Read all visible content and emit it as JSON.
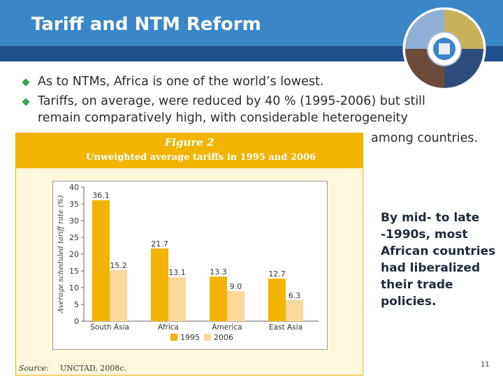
{
  "slide": {
    "title": "Tariff and NTM Reform",
    "page_number": "11",
    "accent_color": "#3a86c8",
    "strip_color": "#1f4f8a",
    "bullet_color": "#2fa84f"
  },
  "bullets": [
    {
      "text": "As to NTMs, Africa is one of the world’s lowest."
    },
    {
      "text": "Tariffs, on average, were reduced by 40 % (1995-2006) but still",
      "continuation_1": "remain comparatively high, with considerable heterogeneity",
      "continuation_2": "among countries."
    }
  ],
  "figure": {
    "label": "Figure 2",
    "title": "Unweighted average tariffs in 1995 and 2006",
    "source_label": "Source:",
    "source_text": "UNCTAD, 2008c."
  },
  "side_note": "By mid- to late -1990s, most African countries had liberalized their trade policies.",
  "chart_data": {
    "type": "bar",
    "title": "Unweighted average tariffs in 1995 and 2006",
    "xlabel": "",
    "ylabel": "Average scheduled tariff rate (%)",
    "ylim": [
      0,
      40
    ],
    "yticks": [
      0,
      5,
      10,
      15,
      20,
      25,
      30,
      35,
      40
    ],
    "categories": [
      "South Asia",
      "Africa",
      "America",
      "East Asia"
    ],
    "series": [
      {
        "name": "1995",
        "values": [
          36.1,
          21.7,
          13.3,
          12.7
        ],
        "color": "#f2b400"
      },
      {
        "name": "2006",
        "values": [
          15.2,
          13.1,
          9.0,
          6.3
        ],
        "color": "#fad89a"
      }
    ],
    "value_labels": [
      [
        "36.1",
        "21.7",
        "13.3",
        "12.7"
      ],
      [
        "15.2",
        "13.1",
        "9.0",
        "6.3"
      ]
    ],
    "legend": "bottom"
  }
}
